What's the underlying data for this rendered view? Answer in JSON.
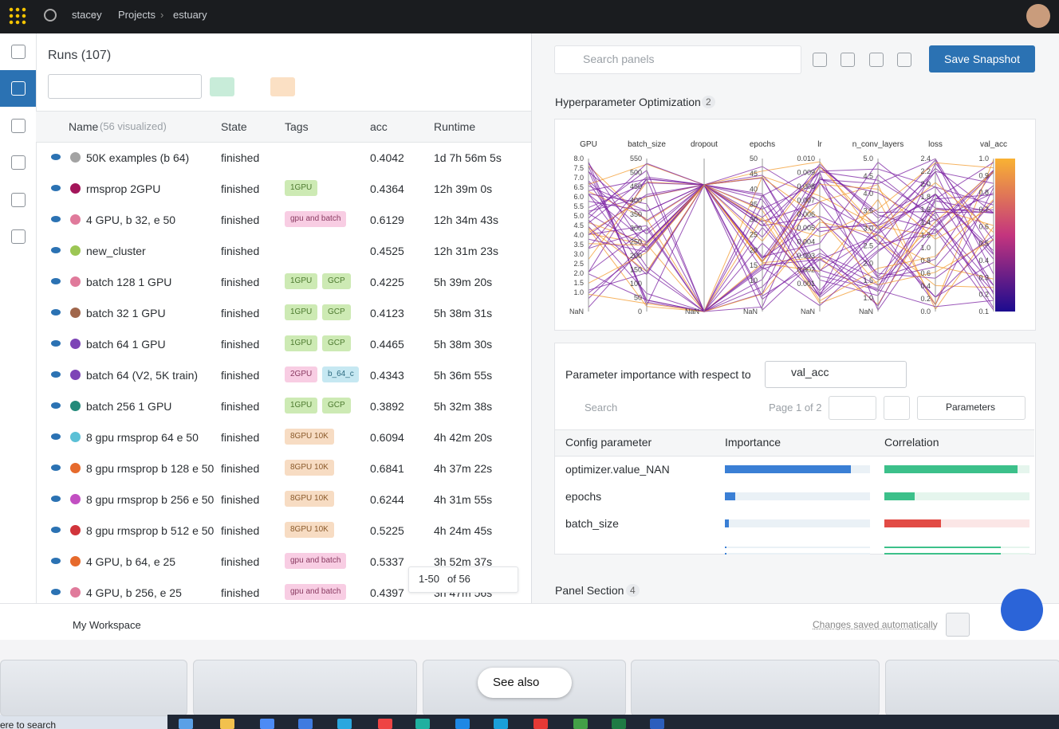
{
  "header": {
    "breadcrumb": [
      "stacey",
      "Projects",
      "estuary"
    ]
  },
  "runs": {
    "title": "Runs (107)",
    "columns": [
      "Name",
      "State",
      "Tags",
      "acc",
      "Runtime"
    ],
    "name_note": "(56 visualized)",
    "rows": [
      {
        "name": "50K examples (b 64)",
        "color": "#a3a3a3",
        "state": "finished",
        "tags": [],
        "acc": "0.4042",
        "runtime": "1d 7h 56m 5s"
      },
      {
        "name": "rmsprop 2GPU",
        "color": "#a3155a",
        "state": "finished",
        "tags": [
          "1GPU"
        ],
        "acc": "0.4364",
        "runtime": "12h 39m 0s"
      },
      {
        "name": "4 GPU, b 32, e 50",
        "color": "#e07a9b",
        "state": "finished",
        "tags": [
          "gpu and batch"
        ],
        "acc": "0.6129",
        "runtime": "12h 34m 43s"
      },
      {
        "name": "new_cluster",
        "color": "#9cc654",
        "state": "finished",
        "tags": [],
        "acc": "0.4525",
        "runtime": "12h 31m 23s"
      },
      {
        "name": "batch 128 1 GPU",
        "color": "#e07a9b",
        "state": "finished",
        "tags": [
          "1GPU",
          "GCP"
        ],
        "acc": "0.4225",
        "runtime": "5h 39m 20s"
      },
      {
        "name": "batch 32 1 GPU",
        "color": "#a0664b",
        "state": "finished",
        "tags": [
          "1GPU",
          "GCP"
        ],
        "acc": "0.4123",
        "runtime": "5h 38m 31s"
      },
      {
        "name": "batch 64 1 GPU",
        "color": "#7d45b6",
        "state": "finished",
        "tags": [
          "1GPU",
          "GCP"
        ],
        "acc": "0.4465",
        "runtime": "5h 38m 30s"
      },
      {
        "name": "batch 64 (V2, 5K train)",
        "color": "#7d45b6",
        "state": "finished",
        "tags": [
          "2GPU",
          "b_64_c"
        ],
        "acc": "0.4343",
        "runtime": "5h 36m 55s"
      },
      {
        "name": "batch 256 1 GPU",
        "color": "#238a7a",
        "state": "finished",
        "tags": [
          "1GPU",
          "GCP"
        ],
        "acc": "0.3892",
        "runtime": "5h 32m 38s"
      },
      {
        "name": "8 gpu rmsprop 64 e 50",
        "color": "#5bc0d6",
        "state": "finished",
        "tags": [
          "8GPU 10K"
        ],
        "acc": "0.6094",
        "runtime": "4h 42m 20s"
      },
      {
        "name": "8 gpu rmsprop b 128 e 50",
        "color": "#e66a2c",
        "state": "finished",
        "tags": [
          "8GPU 10K"
        ],
        "acc": "0.6841",
        "runtime": "4h 37m 22s"
      },
      {
        "name": "8 gpu rmsprop b 256 e 50",
        "color": "#c24fc2",
        "state": "finished",
        "tags": [
          "8GPU 10K"
        ],
        "acc": "0.6244",
        "runtime": "4h 31m 55s"
      },
      {
        "name": "8 gpu rmsprop b 512 e 50",
        "color": "#d1343b",
        "state": "finished",
        "tags": [
          "8GPU 10K"
        ],
        "acc": "0.5225",
        "runtime": "4h 24m 45s"
      },
      {
        "name": "4 GPU, b 64, e 25",
        "color": "#e66a2c",
        "state": "finished",
        "tags": [
          "gpu and batch"
        ],
        "acc": "0.5337",
        "runtime": "3h 52m 37s"
      },
      {
        "name": "4 GPU, b 256, e 25",
        "color": "#e07a9b",
        "state": "finished",
        "tags": [
          "gpu and batch"
        ],
        "acc": "0.4397",
        "runtime": "3h 47m 56s"
      }
    ],
    "pagination": {
      "range": "1-50",
      "total": "of 56"
    }
  },
  "panels": {
    "search_placeholder": "Search panels",
    "save": "Save Snapshot",
    "sections": [
      {
        "title": "Hyperparameter Optimization",
        "count": "2"
      },
      {
        "title": "Panel Section",
        "count": "4"
      }
    ]
  },
  "parallel": {
    "axes": [
      {
        "name": "GPU",
        "ticks": [
          "8.0",
          "7.5",
          "7.0",
          "6.5",
          "6.0",
          "5.5",
          "5.0",
          "4.5",
          "4.0",
          "3.5",
          "3.0",
          "2.5",
          "2.0",
          "1.5",
          "1.0",
          "NaN"
        ]
      },
      {
        "name": "batch_size",
        "ticks": [
          "550",
          "500",
          "450",
          "400",
          "350",
          "300",
          "250",
          "200",
          "150",
          "100",
          "50",
          "0"
        ]
      },
      {
        "name": "dropout",
        "ticks": [
          "NaN"
        ]
      },
      {
        "name": "epochs",
        "ticks": [
          "50",
          "45",
          "40",
          "35",
          "30",
          "25",
          "20",
          "15",
          "10",
          "NaN"
        ]
      },
      {
        "name": "lr",
        "ticks": [
          "0.010",
          "0.009",
          "0.008",
          "0.007",
          "0.006",
          "0.005",
          "0.004",
          "0.003",
          "0.002",
          "0.001",
          "NaN"
        ]
      },
      {
        "name": "n_conv_layers",
        "ticks": [
          "5.0",
          "4.5",
          "4.0",
          "3.5",
          "3.0",
          "2.5",
          "2.0",
          "1.5",
          "1.0",
          "NaN"
        ]
      },
      {
        "name": "loss",
        "ticks": [
          "2.4",
          "2.2",
          "2.0",
          "1.8",
          "1.6",
          "1.4",
          "1.2",
          "1.0",
          "0.8",
          "0.6",
          "0.4",
          "0.2",
          "0.0"
        ]
      },
      {
        "name": "val_acc",
        "ticks": [
          "1.0",
          "0.9",
          "0.8",
          "0.7",
          "0.6",
          "0.5",
          "0.4",
          "0.3",
          "0.2",
          "0.1"
        ]
      }
    ]
  },
  "importance": {
    "heading": "Parameter importance with respect to",
    "metric": "val_acc",
    "search": "Search",
    "page": "Page 1 of 2",
    "parameters": "Parameters",
    "columns": [
      "Config parameter",
      "Importance",
      "Correlation"
    ],
    "rows": [
      {
        "name": "optimizer.value_NAN",
        "importance": 0.87,
        "correlation": 0.92
      },
      {
        "name": "epochs",
        "importance": 0.07,
        "correlation": 0.21
      },
      {
        "name": "batch_size",
        "importance": 0.03,
        "correlation": -0.39
      },
      {
        "name": null,
        "importance": 0.01,
        "correlation": 0.8
      }
    ]
  },
  "footer": {
    "workspace": "My Workspace",
    "saved": "Changes saved automatically"
  },
  "see_also": "See also",
  "taskbar_search": "ere to search"
}
